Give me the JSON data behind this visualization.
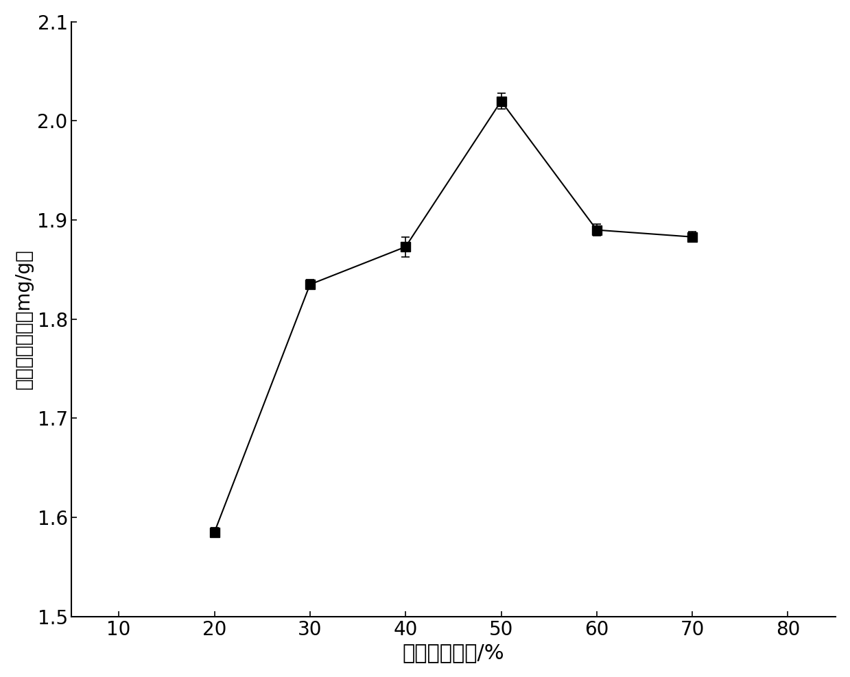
{
  "x": [
    20,
    30,
    40,
    50,
    60,
    70
  ],
  "y": [
    1.585,
    1.835,
    1.873,
    2.02,
    1.89,
    1.883
  ],
  "yerr": [
    0.005,
    0.005,
    0.01,
    0.008,
    0.006,
    0.005
  ],
  "xlabel": "乙醇体积分数/%",
  "ylabel": "黄酮提取量／（mg/g）",
  "xlim": [
    5,
    85
  ],
  "ylim": [
    1.5,
    2.1
  ],
  "xticks": [
    10,
    20,
    30,
    40,
    50,
    60,
    70,
    80
  ],
  "yticks": [
    1.5,
    1.6,
    1.7,
    1.8,
    1.9,
    2.0,
    2.1
  ],
  "marker": "s",
  "marker_size": 10,
  "line_color": "black",
  "marker_color": "black",
  "line_width": 1.5,
  "xlabel_fontsize": 22,
  "ylabel_fontsize": 20,
  "tick_fontsize": 20,
  "background_color": "#ffffff"
}
